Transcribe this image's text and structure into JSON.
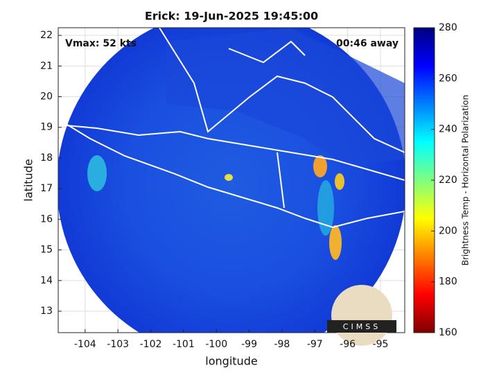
{
  "chart_data": {
    "type": "map",
    "title": "Erick: 19-Jun-2025 19:45:00",
    "annotations": [
      "Vmax: 52 kts",
      "00:46 away"
    ],
    "x_label": "longitude",
    "y_label": "latitude",
    "xlim": [
      -104.82,
      -94.26
    ],
    "ylim": [
      12.3,
      22.25
    ],
    "xticks": [
      -104,
      -103,
      -102,
      -101,
      -100,
      -99,
      -98,
      -97,
      -96,
      -95
    ],
    "yticks": [
      13,
      14,
      15,
      16,
      17,
      18,
      19,
      20,
      21,
      22
    ],
    "grid": true,
    "colorbar": {
      "label": "Brightness Temp - Horizontal Polarization",
      "lim": [
        160,
        280
      ],
      "ticks": [
        160,
        180,
        200,
        220,
        240,
        260,
        280
      ]
    },
    "logo": "CIMSS"
  }
}
